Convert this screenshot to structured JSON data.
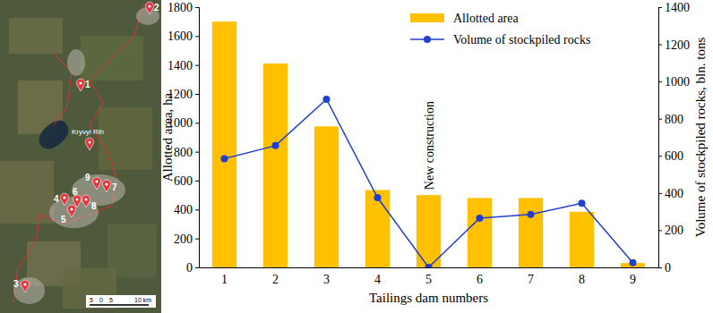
{
  "chart_data": {
    "type": "bar",
    "x_label": "Tailings dam numbers",
    "y_label": "Allotted area, ha",
    "y2_label": "Volume of stockpiled rocks, bln. tons",
    "categories": [
      "1",
      "2",
      "3",
      "4",
      "5",
      "6",
      "7",
      "8",
      "9"
    ],
    "series": [
      {
        "name": "Allotted area",
        "type": "bar",
        "color": "#FFC000",
        "values": [
          1700,
          1410,
          975,
          535,
          500,
          480,
          480,
          385,
          30
        ]
      },
      {
        "name": "Volume of stockpiled rocks",
        "type": "line",
        "axis": "y2",
        "color": "#1F3FD0",
        "marker": "circle",
        "values": [
          585,
          655,
          905,
          375,
          0,
          265,
          285,
          345,
          25
        ]
      }
    ],
    "ylim": [
      0,
      1800
    ],
    "yticks": [
      0,
      200,
      400,
      600,
      800,
      1000,
      1200,
      1400,
      1600,
      1800
    ],
    "y2lim": [
      0,
      1400
    ],
    "y2ticks": [
      0,
      200,
      400,
      600,
      800,
      1000,
      1200,
      1400
    ],
    "annotations": [
      {
        "text": "New construction",
        "x": "5"
      }
    ],
    "legend": "upper right",
    "grid": false
  },
  "map": {
    "place_label": "Kryvyi Rih",
    "markers": [
      "1",
      "2",
      "3",
      "4",
      "5",
      "6",
      "7",
      "8",
      "9"
    ],
    "scale_labels": [
      "5",
      "0",
      "5",
      "10 km"
    ]
  }
}
